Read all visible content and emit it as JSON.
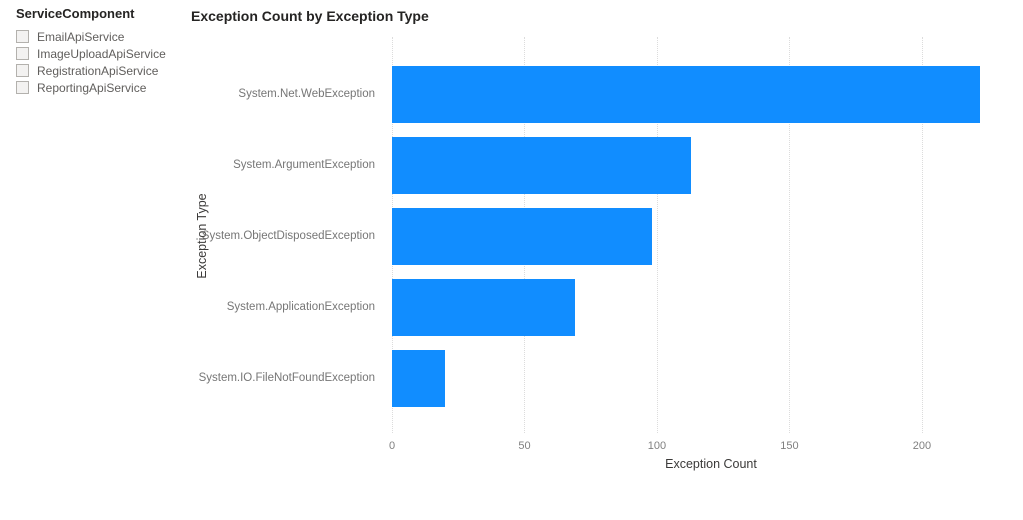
{
  "slicer": {
    "title": "ServiceComponent",
    "items": [
      {
        "label": "EmailApiService",
        "checked": false
      },
      {
        "label": "ImageUploadApiService",
        "checked": false
      },
      {
        "label": "RegistrationApiService",
        "checked": false
      },
      {
        "label": "ReportingApiService",
        "checked": false
      }
    ]
  },
  "chart_data": {
    "type": "bar",
    "orientation": "horizontal",
    "title": "Exception Count by Exception Type",
    "xlabel": "Exception Count",
    "ylabel": "Exception Type",
    "categories": [
      "System.Net.WebException",
      "System.ArgumentException",
      "System.ObjectDisposedException",
      "System.ApplicationException",
      "System.IO.FileNotFoundException"
    ],
    "values": [
      222,
      113,
      98,
      69,
      20
    ],
    "xticks": [
      0,
      50,
      100,
      150,
      200
    ],
    "xlim": [
      0,
      234
    ],
    "grid": "vertical-dotted",
    "legend": "none",
    "bar_color": "#118DFF"
  },
  "colors": {
    "bar": "#118DFF",
    "title_text": "#252423",
    "axis_title_text": "#3b3a39",
    "tick_label_text": "#808080",
    "category_label_text": "#767676",
    "slicer_item_text": "#605e5c",
    "gridline": "#dcdcdc",
    "checkbox_border": "#b3b1ad",
    "background": "#ffffff"
  }
}
